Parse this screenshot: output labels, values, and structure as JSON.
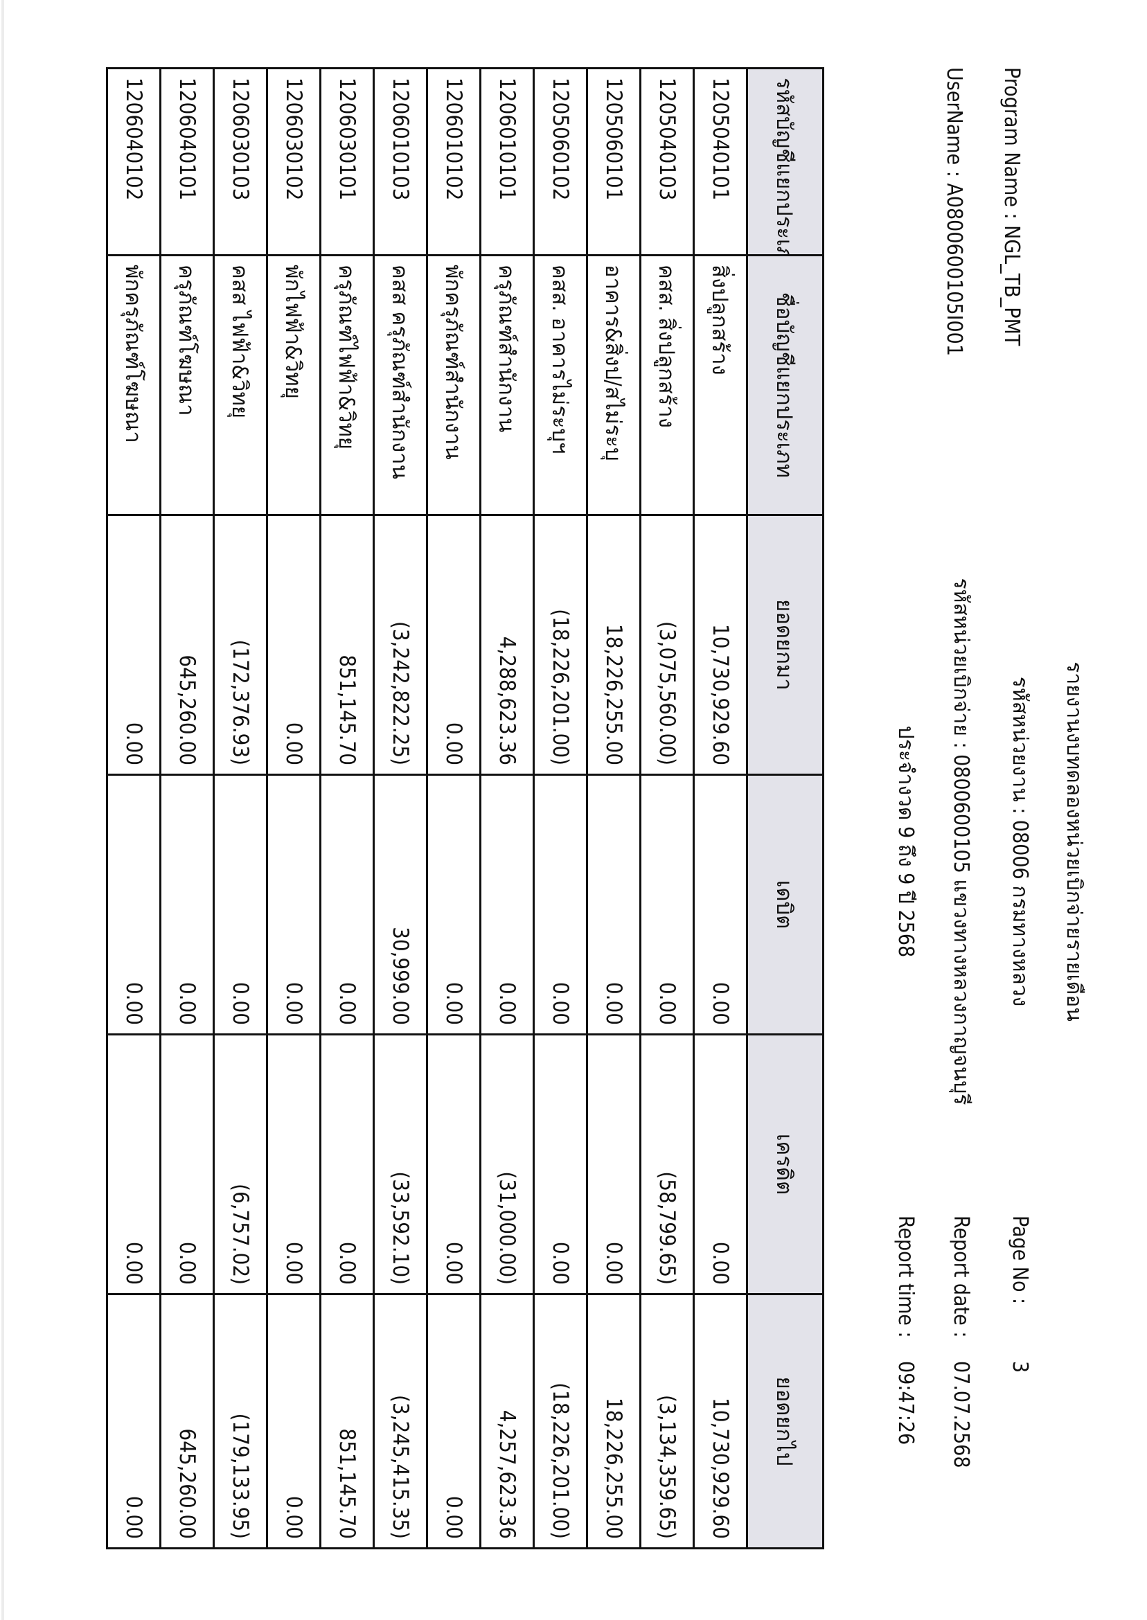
{
  "report": {
    "title": "รายงานงบทดลองหน่วยเบิกจ่ายรายเดือน",
    "agency": "รหัสหน่วยงาน : 08006 กรมทางหลวง",
    "disbursement_unit": "รหัสหน่วยเบิกจ่าย : 0800600105 แขวงทางหลวงกาญจนบุรี",
    "period": "ประจำงวด 9 ถึง 9 ปี 2568",
    "program_name": "Program Name : NGL_TB_PMT",
    "username": "UserName : A0800600105I001",
    "page_no_label": "Page No :",
    "page_no": "3",
    "report_date_label": "Report date :",
    "report_date": "07.07.2568",
    "report_time_label": "Report time :",
    "report_time": "09:47:26"
  },
  "table": {
    "headers": [
      "รหัสบัญชีแยกประเภท",
      "ชื่อบัญชีแยกประเภท",
      "ยอดยกมา",
      "เดบิต",
      "เครดิต",
      "ยอดยกไป"
    ],
    "rows": [
      {
        "code": "1205040101",
        "name": "สิ่งปลูกสร้าง",
        "opening": "10,730,929.60",
        "debit": "0.00",
        "credit": "0.00",
        "closing": "10,730,929.60"
      },
      {
        "code": "1205040103",
        "name": "คสส. สิ่งปลูกสร้าง",
        "opening": "(3,075,560.00)",
        "debit": "0.00",
        "credit": "(58,799.65)",
        "closing": "(3,134,359.65)"
      },
      {
        "code": "1205060101",
        "name": "อาคาร&สิ่งป/สไม่ระบุ",
        "opening": "18,226,255.00",
        "debit": "0.00",
        "credit": "0.00",
        "closing": "18,226,255.00"
      },
      {
        "code": "1205060102",
        "name": "คสส. อาคารไม่ระบุฯ",
        "opening": "(18,226,201.00)",
        "debit": "0.00",
        "credit": "0.00",
        "closing": "(18,226,201.00)"
      },
      {
        "code": "1206010101",
        "name": "ครุภัณฑ์สำนักงาน",
        "opening": "4,288,623.36",
        "debit": "0.00",
        "credit": "(31,000.00)",
        "closing": "4,257,623.36"
      },
      {
        "code": "1206010102",
        "name": "พักครุภัณฑ์สำนักงาน",
        "opening": "0.00",
        "debit": "0.00",
        "credit": "0.00",
        "closing": "0.00"
      },
      {
        "code": "1206010103",
        "name": "คสส ครุภัณฑ์สำนักงาน",
        "opening": "(3,242,822.25)",
        "debit": "30,999.00",
        "credit": "(33,592.10)",
        "closing": "(3,245,415.35)"
      },
      {
        "code": "1206030101",
        "name": "ครุภัณฑ์ไฟฟ้า&วิทยุ",
        "opening": "851,145.70",
        "debit": "0.00",
        "credit": "0.00",
        "closing": "851,145.70"
      },
      {
        "code": "1206030102",
        "name": "พักไฟฟ้า&วิทยุ",
        "opening": "0.00",
        "debit": "0.00",
        "credit": "0.00",
        "closing": "0.00"
      },
      {
        "code": "1206030103",
        "name": "คสส ไฟฟ้า&วิทยุ",
        "opening": "(172,376.93)",
        "debit": "0.00",
        "credit": "(6,757.02)",
        "closing": "(179,133.95)"
      },
      {
        "code": "1206040101",
        "name": "ครุภัณฑ์โฆษณา",
        "opening": "645,260.00",
        "debit": "0.00",
        "credit": "0.00",
        "closing": "645,260.00"
      },
      {
        "code": "1206040102",
        "name": "พักครุภัณฑ์โฆษณา",
        "opening": "0.00",
        "debit": "0.00",
        "credit": "0.00",
        "closing": "0.00"
      }
    ]
  }
}
